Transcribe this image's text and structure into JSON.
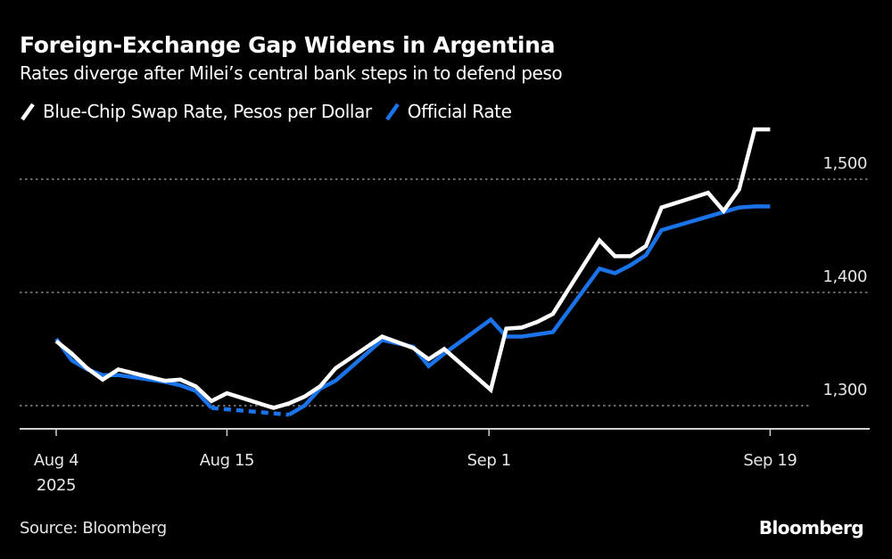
{
  "header": {
    "title": "Foreign-Exchange Gap Widens in Argentina",
    "subtitle": "Rates diverge after Milei’s central bank steps in to defend peso"
  },
  "legend": [
    {
      "label": "Blue-Chip Swap Rate, Pesos per Dollar",
      "color": "#ffffff",
      "icon": "diagonal-line-icon"
    },
    {
      "label": "Official Rate",
      "color": "#1a73e8",
      "icon": "diagonal-line-icon"
    }
  ],
  "footer": {
    "source": "Source: Bloomberg",
    "brand": "Bloomberg"
  },
  "chart_data": {
    "type": "line",
    "title": "Foreign-Exchange Gap Widens in Argentina",
    "subtitle": "Rates diverge after Milei’s central bank steps in to defend peso",
    "xlabel": "",
    "ylabel": "Pesos per Dollar",
    "ylim": [
      1280,
      1560
    ],
    "yticks": [
      1300,
      1400,
      1500
    ],
    "ytick_labels": [
      "1,300",
      "1,400",
      "1,500"
    ],
    "ytick_side": "right",
    "grid": "horizontal dotted",
    "legend_position": "top-left",
    "xlim_days": [
      -2,
      52
    ],
    "xticks": [
      {
        "day": 0,
        "label": "Aug 4",
        "sublabel": "2025"
      },
      {
        "day": 11,
        "label": "Aug 15",
        "sublabel": ""
      },
      {
        "day": 28,
        "label": "Sep 1",
        "sublabel": ""
      },
      {
        "day": 46,
        "label": "Sep 19",
        "sublabel": ""
      }
    ],
    "x": [
      "2025-08-04",
      "2025-08-05",
      "2025-08-06",
      "2025-08-07",
      "2025-08-08",
      "2025-08-11",
      "2025-08-12",
      "2025-08-13",
      "2025-08-14",
      "2025-08-15",
      "2025-08-18",
      "2025-08-19",
      "2025-08-20",
      "2025-08-21",
      "2025-08-22",
      "2025-08-25",
      "2025-08-26",
      "2025-08-27",
      "2025-08-28",
      "2025-08-29",
      "2025-09-01",
      "2025-09-02",
      "2025-09-03",
      "2025-09-04",
      "2025-09-05",
      "2025-09-08",
      "2025-09-09",
      "2025-09-10",
      "2025-09-11",
      "2025-09-12",
      "2025-09-15",
      "2025-09-16",
      "2025-09-17",
      "2025-09-18",
      "2025-09-19"
    ],
    "x_day_offsets": [
      0,
      1,
      2,
      3,
      4,
      7,
      8,
      9,
      10,
      11,
      14,
      15,
      16,
      17,
      18,
      21,
      22,
      23,
      24,
      25,
      28,
      29,
      30,
      31,
      32,
      35,
      36,
      37,
      38,
      39,
      42,
      43,
      44,
      45,
      46
    ],
    "series": [
      {
        "name": "Blue-Chip Swap Rate, Pesos per Dollar",
        "color": "#ffffff",
        "values": [
          1357,
          1346,
          1333,
          1323,
          1332,
          1322,
          1323,
          1317,
          1304,
          1311,
          1298,
          1302,
          1308,
          1317,
          1333,
          1361,
          1356,
          1351,
          1341,
          1350,
          1314,
          1368,
          1369,
          1374,
          1381,
          1446,
          1432,
          1432,
          1441,
          1475,
          1488,
          1472,
          1491,
          1544,
          1544
        ]
      },
      {
        "name": "Official Rate",
        "color": "#1a73e8",
        "gap_style": "dashed",
        "values": [
          1359,
          1340,
          1332,
          1327,
          1327,
          1321,
          1318,
          1313,
          1298,
          null,
          null,
          1292,
          1300,
          1315,
          1322,
          1358,
          1355,
          1352,
          1335,
          1346,
          1376,
          1361,
          1361,
          1363,
          1365,
          1421,
          1417,
          1424,
          1433,
          1455,
          1467,
          1471,
          1475,
          1476,
          1476
        ]
      }
    ]
  }
}
